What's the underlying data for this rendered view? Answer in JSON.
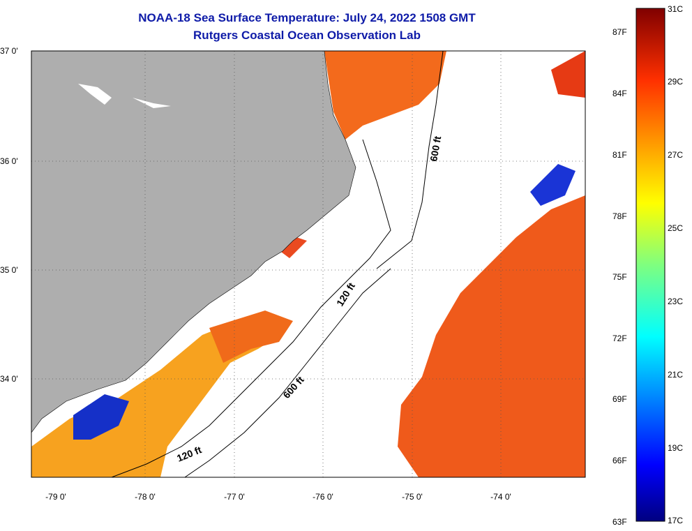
{
  "title": "NOAA-18 Sea Surface Temperature:  July 24, 2022 1508 GMT",
  "subtitle": "Rutgers Coastal Ocean Observation Lab",
  "map": {
    "longitude_ticks": [
      "-79 0'",
      "-78 0'",
      "-77 0'",
      "-76 0'",
      "-75 0'",
      "-74 0'"
    ],
    "latitude_ticks": [
      "37 0'",
      "36 0'",
      "35 0'",
      "34 0'"
    ],
    "contour_labels": [
      "600 ft",
      "120 ft",
      "600 ft",
      "120 ft"
    ],
    "colors": {
      "land": "#aeaeae",
      "clouds": "#ffffff",
      "warm_water": "#f05a1a",
      "mid_water": "#f7a11e",
      "cool_water": "#1530c8"
    }
  },
  "colorbar": {
    "fahrenheit_labels": [
      "87F",
      "84F",
      "81F",
      "78F",
      "75F",
      "72F",
      "69F",
      "66F",
      "63F"
    ],
    "celsius_labels": [
      "31C",
      "29C",
      "27C",
      "25C",
      "23C",
      "21C",
      "19C",
      "17C"
    ],
    "range_c": [
      17,
      31
    ],
    "range_f": [
      63,
      87
    ]
  }
}
